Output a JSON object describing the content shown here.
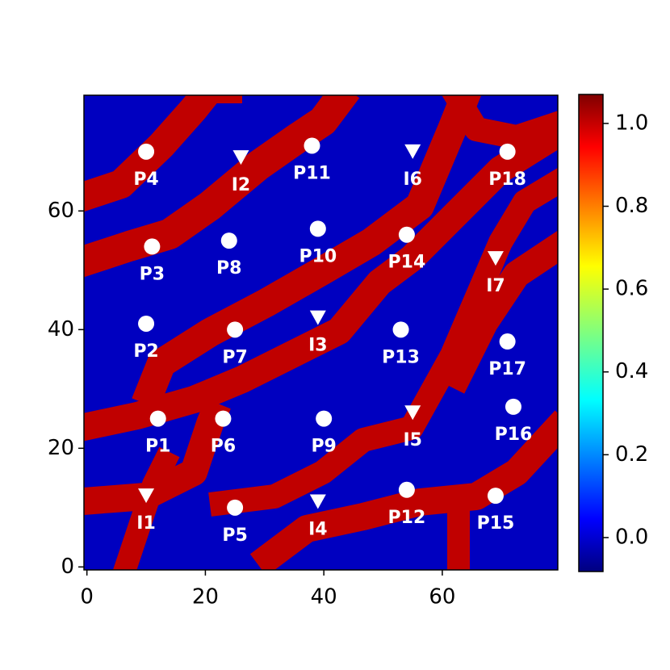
{
  "chart_data": {
    "type": "scatter",
    "labels": [
      "P4",
      "I2",
      "P11",
      "I6",
      "P18",
      "P3",
      "P8",
      "P10",
      "P14",
      "I7",
      "P2",
      "P7",
      "I3",
      "P13",
      "P17",
      "P1",
      "P6",
      "P9",
      "I5",
      "P16",
      "I1",
      "P5",
      "I4",
      "P12",
      "P15"
    ],
    "x": [
      10,
      26,
      38,
      55,
      71,
      11,
      24,
      39,
      54,
      69,
      10,
      25,
      39,
      53,
      71,
      12,
      23,
      40,
      55,
      72,
      10,
      25,
      39,
      54,
      69
    ],
    "y": [
      70,
      69,
      71,
      70,
      70,
      54,
      55,
      57,
      56,
      52,
      41,
      40,
      42,
      40,
      38,
      25,
      25,
      25,
      26,
      27,
      12,
      10,
      11,
      13,
      12
    ],
    "markers": [
      "circle",
      "triangle",
      "circle",
      "triangle",
      "circle",
      "circle",
      "circle",
      "circle",
      "circle",
      "triangle",
      "circle",
      "circle",
      "triangle",
      "circle",
      "circle",
      "circle",
      "circle",
      "circle",
      "triangle",
      "circle",
      "triangle",
      "circle",
      "triangle",
      "circle",
      "circle"
    ],
    "color": "#ffffff",
    "xlim": [
      -0.5,
      79.5
    ],
    "ylim": [
      -0.5,
      79.5
    ],
    "xticks": [
      0,
      20,
      40,
      60
    ],
    "yticks": [
      0,
      20,
      40,
      60
    ],
    "colormap": "jet",
    "clim": [
      -0.082,
      1.07
    ],
    "cticks": [
      {
        "value": 0.0,
        "label": "0.0"
      },
      {
        "value": 0.2,
        "label": "0.2"
      },
      {
        "value": 0.4,
        "label": "0.4"
      },
      {
        "value": 0.6,
        "label": "0.6"
      },
      {
        "value": 0.8,
        "label": "0.8"
      },
      {
        "value": 1.0,
        "label": "1.0"
      }
    ]
  }
}
